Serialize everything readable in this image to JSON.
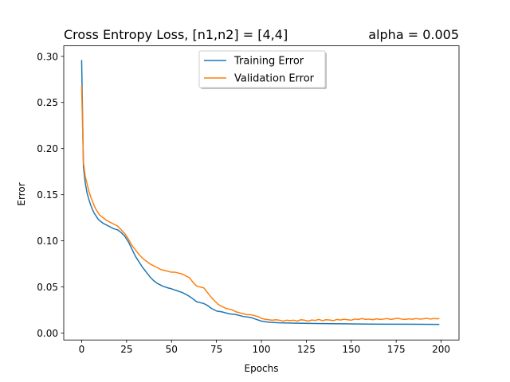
{
  "chart_data": {
    "type": "line",
    "title_left": "Cross Entropy Loss, [n1,n2] = [4,4]",
    "title_right": "alpha = 0.005",
    "xlabel": "Epochs",
    "ylabel": "Error",
    "xlim": [
      -9.95,
      209.95
    ],
    "ylim": [
      -0.00745,
      0.31135
    ],
    "xticks": [
      0,
      25,
      50,
      75,
      100,
      125,
      150,
      175,
      200
    ],
    "yticks": [
      0.0,
      0.05,
      0.1,
      0.15,
      0.2,
      0.25,
      0.3
    ],
    "ytick_decimals": 2,
    "grid": false,
    "legend_position": "upper center",
    "series": [
      {
        "name": "Training Error",
        "color": "#1f77b4",
        "points": [
          [
            0,
            0.296
          ],
          [
            1,
            0.18
          ],
          [
            2,
            0.163
          ],
          [
            3,
            0.152
          ],
          [
            4,
            0.145
          ],
          [
            5,
            0.139
          ],
          [
            6,
            0.134
          ],
          [
            7,
            0.13
          ],
          [
            8,
            0.127
          ],
          [
            9,
            0.124
          ],
          [
            10,
            0.122
          ],
          [
            12,
            0.119
          ],
          [
            14,
            0.117
          ],
          [
            16,
            0.115
          ],
          [
            18,
            0.113
          ],
          [
            20,
            0.112
          ],
          [
            22,
            0.109
          ],
          [
            24,
            0.105
          ],
          [
            26,
            0.099
          ],
          [
            28,
            0.091
          ],
          [
            30,
            0.083
          ],
          [
            32,
            0.077
          ],
          [
            34,
            0.071
          ],
          [
            36,
            0.066
          ],
          [
            38,
            0.061
          ],
          [
            40,
            0.057
          ],
          [
            42,
            0.054
          ],
          [
            45,
            0.051
          ],
          [
            48,
            0.049
          ],
          [
            50,
            0.048
          ],
          [
            53,
            0.046
          ],
          [
            56,
            0.044
          ],
          [
            59,
            0.041
          ],
          [
            62,
            0.037
          ],
          [
            64,
            0.034
          ],
          [
            66,
            0.033
          ],
          [
            68,
            0.032
          ],
          [
            70,
            0.03
          ],
          [
            72,
            0.027
          ],
          [
            75,
            0.024
          ],
          [
            78,
            0.023
          ],
          [
            82,
            0.021
          ],
          [
            86,
            0.02
          ],
          [
            90,
            0.018
          ],
          [
            94,
            0.017
          ],
          [
            97,
            0.015
          ],
          [
            100,
            0.013
          ],
          [
            104,
            0.0118
          ],
          [
            110,
            0.0112
          ],
          [
            120,
            0.0107
          ],
          [
            130,
            0.0104
          ],
          [
            140,
            0.0102
          ],
          [
            150,
            0.01
          ],
          [
            160,
            0.0098
          ],
          [
            170,
            0.0097
          ],
          [
            180,
            0.0096
          ],
          [
            190,
            0.0095
          ],
          [
            199,
            0.0094
          ]
        ]
      },
      {
        "name": "Validation Error",
        "color": "#ff7f0e",
        "points": [
          [
            0,
            0.268
          ],
          [
            1,
            0.185
          ],
          [
            2,
            0.17
          ],
          [
            3,
            0.162
          ],
          [
            4,
            0.154
          ],
          [
            5,
            0.148
          ],
          [
            6,
            0.143
          ],
          [
            7,
            0.138
          ],
          [
            8,
            0.134
          ],
          [
            9,
            0.131
          ],
          [
            10,
            0.128
          ],
          [
            12,
            0.125
          ],
          [
            14,
            0.122
          ],
          [
            16,
            0.12
          ],
          [
            18,
            0.118
          ],
          [
            20,
            0.116
          ],
          [
            22,
            0.112
          ],
          [
            24,
            0.108
          ],
          [
            26,
            0.102
          ],
          [
            28,
            0.095
          ],
          [
            30,
            0.09
          ],
          [
            32,
            0.085
          ],
          [
            34,
            0.081
          ],
          [
            36,
            0.078
          ],
          [
            38,
            0.075
          ],
          [
            40,
            0.073
          ],
          [
            42,
            0.071
          ],
          [
            44,
            0.069
          ],
          [
            46,
            0.068
          ],
          [
            48,
            0.067
          ],
          [
            50,
            0.066
          ],
          [
            52,
            0.066
          ],
          [
            54,
            0.065
          ],
          [
            56,
            0.064
          ],
          [
            58,
            0.062
          ],
          [
            60,
            0.06
          ],
          [
            62,
            0.055
          ],
          [
            64,
            0.051
          ],
          [
            66,
            0.05
          ],
          [
            68,
            0.049
          ],
          [
            70,
            0.044
          ],
          [
            72,
            0.039
          ],
          [
            74,
            0.035
          ],
          [
            76,
            0.031
          ],
          [
            78,
            0.029
          ],
          [
            80,
            0.027
          ],
          [
            82,
            0.026
          ],
          [
            84,
            0.025
          ],
          [
            86,
            0.023
          ],
          [
            88,
            0.022
          ],
          [
            90,
            0.021
          ],
          [
            92,
            0.02
          ],
          [
            94,
            0.02
          ],
          [
            96,
            0.019
          ],
          [
            98,
            0.018
          ],
          [
            100,
            0.016
          ],
          [
            102,
            0.015
          ],
          [
            104,
            0.0145
          ],
          [
            106,
            0.014
          ],
          [
            108,
            0.0145
          ],
          [
            110,
            0.014
          ],
          [
            112,
            0.013
          ],
          [
            114,
            0.014
          ],
          [
            116,
            0.0135
          ],
          [
            118,
            0.014
          ],
          [
            120,
            0.013
          ],
          [
            122,
            0.0145
          ],
          [
            124,
            0.014
          ],
          [
            126,
            0.013
          ],
          [
            128,
            0.0142
          ],
          [
            130,
            0.0138
          ],
          [
            132,
            0.0148
          ],
          [
            134,
            0.0135
          ],
          [
            136,
            0.0145
          ],
          [
            138,
            0.0142
          ],
          [
            140,
            0.0135
          ],
          [
            142,
            0.0148
          ],
          [
            144,
            0.0142
          ],
          [
            146,
            0.015
          ],
          [
            148,
            0.0145
          ],
          [
            150,
            0.014
          ],
          [
            152,
            0.0152
          ],
          [
            154,
            0.0148
          ],
          [
            156,
            0.0158
          ],
          [
            158,
            0.0148
          ],
          [
            160,
            0.0152
          ],
          [
            162,
            0.0145
          ],
          [
            164,
            0.0155
          ],
          [
            166,
            0.0148
          ],
          [
            168,
            0.0152
          ],
          [
            170,
            0.0158
          ],
          [
            172,
            0.0148
          ],
          [
            174,
            0.0155
          ],
          [
            176,
            0.016
          ],
          [
            178,
            0.0152
          ],
          [
            180,
            0.0148
          ],
          [
            182,
            0.0155
          ],
          [
            184,
            0.015
          ],
          [
            186,
            0.0158
          ],
          [
            188,
            0.0152
          ],
          [
            190,
            0.0155
          ],
          [
            192,
            0.016
          ],
          [
            194,
            0.0152
          ],
          [
            196,
            0.0158
          ],
          [
            198,
            0.0155
          ],
          [
            199,
            0.016
          ]
        ]
      }
    ]
  }
}
